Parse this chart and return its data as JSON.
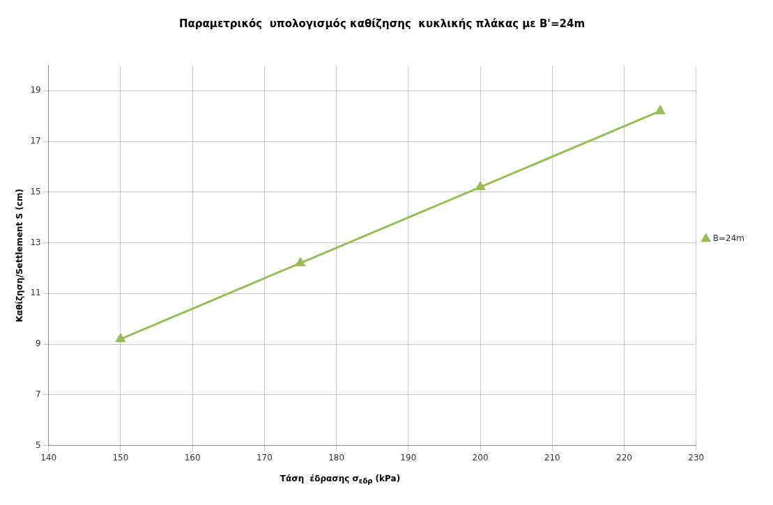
{
  "chart_data": {
    "type": "line",
    "title": "Παραμετρικός  υπολογισμός καθίζησης  κυκλικής πλάκας με B'=24m",
    "xlabel": "Τάση  έδρασης σ$_{εδρ}$ (kPa)",
    "ylabel": "Καθίζηση/Settlement S (cm)",
    "x": [
      150,
      175,
      200,
      225
    ],
    "series": [
      {
        "name": "B=24m",
        "color": "#9bbb59",
        "values": [
          9.2,
          12.2,
          15.2,
          18.2
        ]
      }
    ],
    "xlim": [
      140,
      230
    ],
    "xticks": [
      140,
      150,
      160,
      170,
      180,
      190,
      200,
      210,
      220,
      230
    ],
    "ylim": [
      5,
      20
    ],
    "yticks": [
      5,
      7,
      9,
      11,
      13,
      15,
      17,
      19
    ],
    "grid": true,
    "legend": "right",
    "marker": "triangle",
    "line_style": "solid"
  }
}
